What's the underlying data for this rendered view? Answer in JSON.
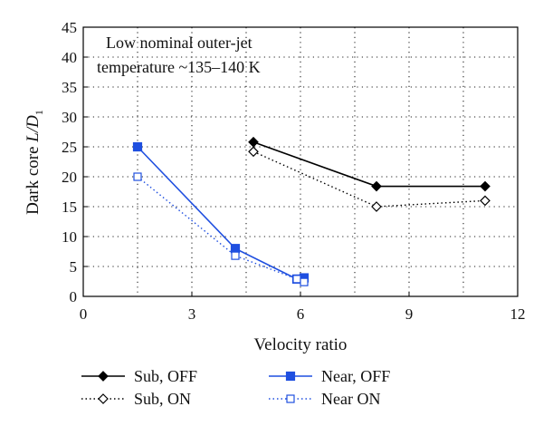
{
  "chart_data": {
    "type": "line",
    "xlabel": "Velocity ratio",
    "ylabel_main": "Dark core ",
    "ylabel_italic": "L/D",
    "ylabel_sub": "1",
    "xlim": [
      0,
      12
    ],
    "ylim": [
      0,
      45
    ],
    "xticks": [
      0,
      3,
      6,
      9,
      12
    ],
    "yticks": [
      0,
      5,
      10,
      15,
      20,
      25,
      30,
      35,
      40,
      45
    ],
    "grid": "dotted",
    "annotation": {
      "line1": "Low nominal outer-jet",
      "line2": "temperature ~135–140 K"
    },
    "legend_placement": "bottom",
    "series": [
      {
        "name": "Sub, OFF",
        "color": "#000000",
        "marker": "diamond-filled",
        "line": "solid",
        "points": [
          [
            4.7,
            25.8
          ],
          [
            8.1,
            18.4
          ],
          [
            11.1,
            18.4
          ]
        ]
      },
      {
        "name": "Sub, ON",
        "color": "#000000",
        "marker": "diamond-open",
        "line": "dotted",
        "points": [
          [
            4.7,
            24.2
          ],
          [
            8.1,
            15.0
          ],
          [
            11.1,
            16.0
          ]
        ]
      },
      {
        "name": "Near, OFF",
        "color": "#1f4fe0",
        "marker": "square-filled",
        "line": "solid",
        "points": [
          [
            1.5,
            25.0
          ],
          [
            4.2,
            8.0
          ],
          [
            5.9,
            2.9
          ],
          [
            6.1,
            3.1
          ]
        ]
      },
      {
        "name": "Near ON",
        "color": "#1f4fe0",
        "marker": "square-open",
        "line": "dotted",
        "points": [
          [
            1.5,
            20.0
          ],
          [
            4.2,
            6.8
          ],
          [
            5.9,
            2.9
          ],
          [
            6.1,
            2.4
          ]
        ]
      }
    ]
  }
}
